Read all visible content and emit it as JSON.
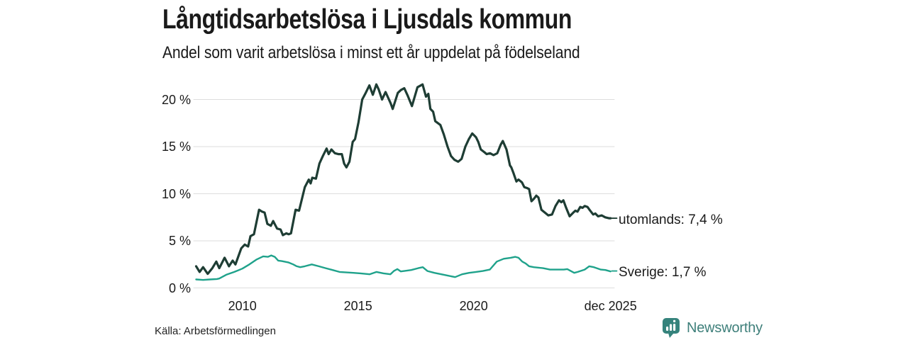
{
  "branding": {
    "name": "Newsworthy"
  },
  "chart_data": {
    "type": "line",
    "title": "Långtidsarbetslösa i Ljusdals kommun",
    "subtitle": "Andel som varit arbetslösa i minst ett år uppdelat på födelseland",
    "source": "Källa: Arbetsförmedlingen",
    "unit": "%",
    "xlabel": "",
    "ylabel": "",
    "x_domain": [
      2008,
      2025.92
    ],
    "y_domain": [
      0,
      22
    ],
    "grid": "horizontal",
    "legend_position": "end-of-line-labels",
    "colors": {
      "grid": "#dddddd",
      "text": "#1a1a1a",
      "brand": "#3e7f7a",
      "brand_icon": "#35837c"
    },
    "yticks": [
      {
        "value": 0,
        "label": "0 %"
      },
      {
        "value": 5,
        "label": "5 %"
      },
      {
        "value": 10,
        "label": "10 %"
      },
      {
        "value": 15,
        "label": "15 %"
      },
      {
        "value": 20,
        "label": "20 %"
      }
    ],
    "xticks": [
      {
        "value": 2010,
        "label": "2010"
      },
      {
        "value": 2015,
        "label": "2015"
      },
      {
        "value": 2020,
        "label": "2020"
      },
      {
        "value": 2025.92,
        "label": "dec 2025"
      }
    ],
    "series": [
      {
        "id": "utomlands",
        "name": "utomlands",
        "end_label": "utomlands: 7,4 %",
        "end_value": 7.4,
        "label_anchor": 7.4,
        "color": "#1e3d34",
        "stroke_width": 3.2,
        "points": [
          [
            2008.0,
            2.3
          ],
          [
            2008.15,
            1.7
          ],
          [
            2008.3,
            2.2
          ],
          [
            2008.5,
            1.5
          ],
          [
            2008.7,
            2.1
          ],
          [
            2008.87,
            2.8
          ],
          [
            2009.0,
            2.1
          ],
          [
            2009.23,
            3.2
          ],
          [
            2009.42,
            2.3
          ],
          [
            2009.58,
            2.9
          ],
          [
            2009.7,
            2.5
          ],
          [
            2009.95,
            4.2
          ],
          [
            2010.1,
            4.6
          ],
          [
            2010.25,
            4.4
          ],
          [
            2010.35,
            5.5
          ],
          [
            2010.5,
            5.7
          ],
          [
            2010.72,
            8.3
          ],
          [
            2010.85,
            8.1
          ],
          [
            2010.96,
            8.0
          ],
          [
            2011.08,
            6.8
          ],
          [
            2011.23,
            6.6
          ],
          [
            2011.33,
            7.1
          ],
          [
            2011.5,
            6.3
          ],
          [
            2011.65,
            6.2
          ],
          [
            2011.75,
            5.6
          ],
          [
            2011.9,
            5.8
          ],
          [
            2012.0,
            5.7
          ],
          [
            2012.1,
            5.8
          ],
          [
            2012.3,
            8.3
          ],
          [
            2012.45,
            8.2
          ],
          [
            2012.7,
            10.7
          ],
          [
            2012.87,
            11.5
          ],
          [
            2012.95,
            11.1
          ],
          [
            2013.02,
            11.7
          ],
          [
            2013.18,
            11.6
          ],
          [
            2013.33,
            13.2
          ],
          [
            2013.48,
            14.0
          ],
          [
            2013.64,
            14.8
          ],
          [
            2013.73,
            14.2
          ],
          [
            2013.85,
            14.7
          ],
          [
            2014.0,
            14.3
          ],
          [
            2014.15,
            14.2
          ],
          [
            2014.3,
            14.2
          ],
          [
            2014.4,
            13.2
          ],
          [
            2014.5,
            12.8
          ],
          [
            2014.63,
            13.4
          ],
          [
            2014.77,
            15.5
          ],
          [
            2014.87,
            15.8
          ],
          [
            2015.02,
            17.6
          ],
          [
            2015.18,
            20.0
          ],
          [
            2015.33,
            20.7
          ],
          [
            2015.49,
            21.5
          ],
          [
            2015.64,
            20.5
          ],
          [
            2015.79,
            21.6
          ],
          [
            2015.89,
            21.1
          ],
          [
            2016.04,
            20.0
          ],
          [
            2016.19,
            20.8
          ],
          [
            2016.41,
            19.6
          ],
          [
            2016.5,
            19.0
          ],
          [
            2016.72,
            20.7
          ],
          [
            2016.85,
            21.0
          ],
          [
            2017.0,
            21.2
          ],
          [
            2017.15,
            20.4
          ],
          [
            2017.33,
            19.3
          ],
          [
            2017.57,
            21.3
          ],
          [
            2017.79,
            21.6
          ],
          [
            2017.94,
            20.3
          ],
          [
            2018.04,
            20.6
          ],
          [
            2018.13,
            19.0
          ],
          [
            2018.25,
            18.7
          ],
          [
            2018.34,
            17.7
          ],
          [
            2018.56,
            17.3
          ],
          [
            2018.71,
            16.3
          ],
          [
            2018.87,
            15.0
          ],
          [
            2019.02,
            14.0
          ],
          [
            2019.17,
            13.6
          ],
          [
            2019.33,
            13.4
          ],
          [
            2019.48,
            13.7
          ],
          [
            2019.64,
            15.0
          ],
          [
            2019.79,
            15.8
          ],
          [
            2019.94,
            16.4
          ],
          [
            2020.1,
            16.0
          ],
          [
            2020.2,
            15.5
          ],
          [
            2020.31,
            14.7
          ],
          [
            2020.47,
            14.4
          ],
          [
            2020.56,
            14.2
          ],
          [
            2020.71,
            14.3
          ],
          [
            2020.86,
            14.1
          ],
          [
            2021.02,
            14.3
          ],
          [
            2021.17,
            15.2
          ],
          [
            2021.26,
            15.6
          ],
          [
            2021.42,
            14.7
          ],
          [
            2021.57,
            13.0
          ],
          [
            2021.63,
            12.8
          ],
          [
            2021.72,
            12.2
          ],
          [
            2021.79,
            11.7
          ],
          [
            2021.85,
            11.3
          ],
          [
            2021.94,
            11.5
          ],
          [
            2022.09,
            11.2
          ],
          [
            2022.19,
            10.7
          ],
          [
            2022.31,
            10.6
          ],
          [
            2022.4,
            10.5
          ],
          [
            2022.5,
            9.2
          ],
          [
            2022.62,
            9.5
          ],
          [
            2022.71,
            9.8
          ],
          [
            2022.8,
            9.6
          ],
          [
            2022.93,
            8.3
          ],
          [
            2023.08,
            8.0
          ],
          [
            2023.23,
            7.7
          ],
          [
            2023.39,
            7.8
          ],
          [
            2023.54,
            8.7
          ],
          [
            2023.69,
            9.3
          ],
          [
            2023.79,
            9.1
          ],
          [
            2023.88,
            9.3
          ],
          [
            2024.0,
            8.5
          ],
          [
            2024.15,
            7.6
          ],
          [
            2024.31,
            8.0
          ],
          [
            2024.4,
            8.2
          ],
          [
            2024.49,
            8.1
          ],
          [
            2024.61,
            8.6
          ],
          [
            2024.71,
            8.5
          ],
          [
            2024.8,
            8.7
          ],
          [
            2024.92,
            8.6
          ],
          [
            2025.01,
            8.3
          ],
          [
            2025.17,
            7.8
          ],
          [
            2025.26,
            7.9
          ],
          [
            2025.38,
            7.6
          ],
          [
            2025.54,
            7.7
          ],
          [
            2025.69,
            7.5
          ],
          [
            2025.85,
            7.4
          ],
          [
            2025.92,
            7.4
          ]
        ]
      },
      {
        "id": "sverige",
        "name": "Sverige",
        "end_label": "Sverige: 1,7 %",
        "end_value": 1.7,
        "label_anchor": 1.8,
        "color": "#1fa28b",
        "stroke_width": 2.4,
        "points": [
          [
            2008.0,
            0.9
          ],
          [
            2008.3,
            0.85
          ],
          [
            2008.6,
            0.9
          ],
          [
            2008.9,
            0.95
          ],
          [
            2009.0,
            1.0
          ],
          [
            2009.3,
            1.4
          ],
          [
            2009.65,
            1.7
          ],
          [
            2010.0,
            2.05
          ],
          [
            2010.3,
            2.5
          ],
          [
            2010.6,
            3.0
          ],
          [
            2010.9,
            3.35
          ],
          [
            2011.1,
            3.3
          ],
          [
            2011.25,
            3.45
          ],
          [
            2011.4,
            3.3
          ],
          [
            2011.55,
            2.9
          ],
          [
            2011.7,
            2.85
          ],
          [
            2012.0,
            2.7
          ],
          [
            2012.2,
            2.5
          ],
          [
            2012.35,
            2.3
          ],
          [
            2012.5,
            2.2
          ],
          [
            2012.7,
            2.3
          ],
          [
            2013.0,
            2.5
          ],
          [
            2013.3,
            2.3
          ],
          [
            2013.6,
            2.1
          ],
          [
            2013.9,
            1.9
          ],
          [
            2014.2,
            1.7
          ],
          [
            2014.5,
            1.65
          ],
          [
            2014.8,
            1.6
          ],
          [
            2015.1,
            1.55
          ],
          [
            2015.5,
            1.45
          ],
          [
            2015.8,
            1.7
          ],
          [
            2016.1,
            1.55
          ],
          [
            2016.4,
            1.45
          ],
          [
            2016.55,
            1.8
          ],
          [
            2016.7,
            2.0
          ],
          [
            2016.85,
            1.75
          ],
          [
            2017.0,
            1.8
          ],
          [
            2017.3,
            1.9
          ],
          [
            2017.6,
            2.1
          ],
          [
            2017.8,
            2.2
          ],
          [
            2018.0,
            1.8
          ],
          [
            2018.3,
            1.6
          ],
          [
            2018.6,
            1.45
          ],
          [
            2018.9,
            1.3
          ],
          [
            2019.2,
            1.15
          ],
          [
            2019.5,
            1.45
          ],
          [
            2019.8,
            1.6
          ],
          [
            2020.1,
            1.7
          ],
          [
            2020.4,
            1.8
          ],
          [
            2020.7,
            1.95
          ],
          [
            2021.0,
            2.8
          ],
          [
            2021.3,
            3.1
          ],
          [
            2021.6,
            3.2
          ],
          [
            2021.8,
            3.3
          ],
          [
            2021.94,
            3.2
          ],
          [
            2022.1,
            2.8
          ],
          [
            2022.25,
            2.6
          ],
          [
            2022.4,
            2.3
          ],
          [
            2022.6,
            2.2
          ],
          [
            2023.0,
            2.1
          ],
          [
            2023.3,
            1.95
          ],
          [
            2023.6,
            1.95
          ],
          [
            2023.9,
            1.95
          ],
          [
            2024.05,
            2.0
          ],
          [
            2024.2,
            1.8
          ],
          [
            2024.35,
            1.6
          ],
          [
            2024.5,
            1.7
          ],
          [
            2024.8,
            1.95
          ],
          [
            2025.0,
            2.3
          ],
          [
            2025.2,
            2.2
          ],
          [
            2025.5,
            1.95
          ],
          [
            2025.7,
            1.9
          ],
          [
            2025.92,
            1.75
          ]
        ]
      }
    ]
  }
}
